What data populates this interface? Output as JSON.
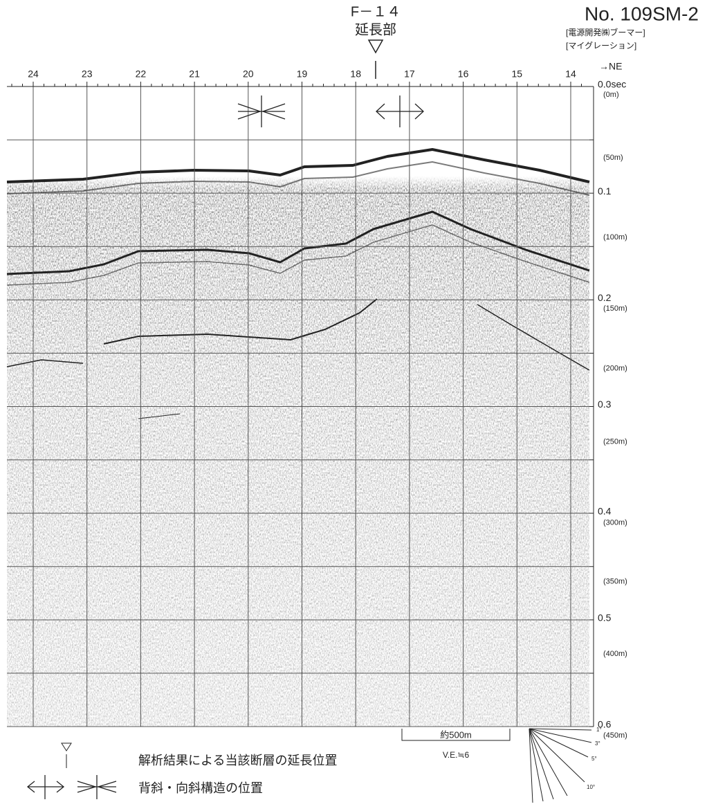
{
  "header": {
    "title": "No. 109SM-2",
    "subtitle_1": "[電源開発㈱ブーマー]",
    "subtitle_2": "[マイグレーション]"
  },
  "fault_marker": {
    "name": "F－１４",
    "label": "延長部"
  },
  "shot_points": [
    "24",
    "23",
    "22",
    "21",
    "20",
    "19",
    "18",
    "17",
    "16",
    "15",
    "14"
  ],
  "direction": "→NE",
  "time_labels": [
    "0.0sec",
    "0.1",
    "0.2",
    "0.3",
    "0.4",
    "0.5",
    "0.6"
  ],
  "depth_labels": [
    "(0m)",
    "(50m)",
    "(100m)",
    "(150m)",
    "(200m)",
    "(250m)",
    "(300m)",
    "(350m)",
    "(400m)",
    "(450m)"
  ],
  "scale": {
    "distance": "約500m",
    "vertical_exaggeration": "V.E.≒6"
  },
  "dip_scale": [
    "1°",
    "3°",
    "5°",
    "10°"
  ],
  "legend": [
    {
      "text": "解析結果による当該断層の延長位置"
    },
    {
      "text": "背斜・向斜構造の位置"
    }
  ]
}
